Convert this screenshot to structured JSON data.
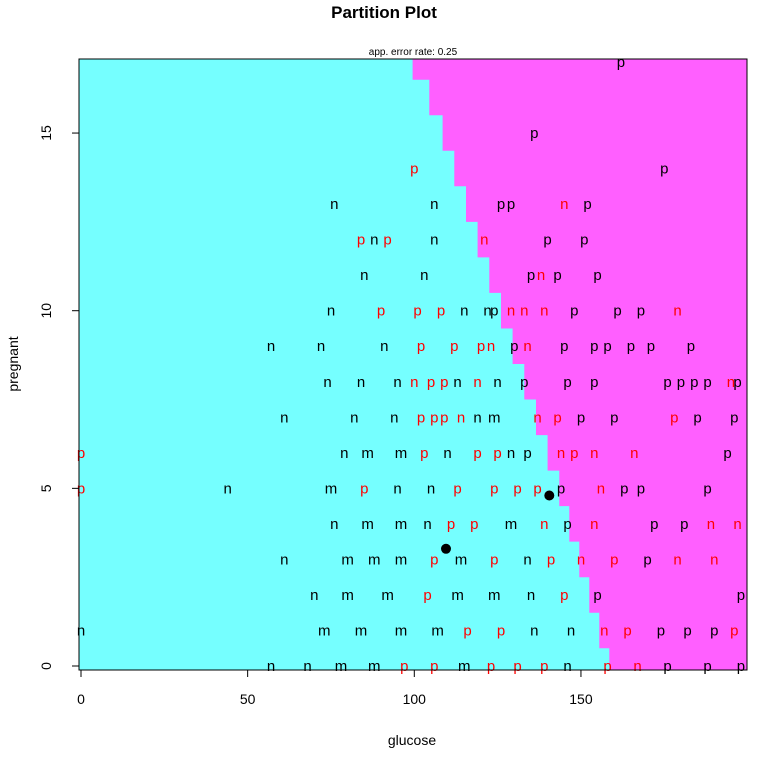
{
  "chart_data": {
    "type": "scatter",
    "title": "Partition Plot",
    "subtitle": "app. error rate: 0.25",
    "xlabel": "glucose",
    "ylabel": "pregnant",
    "xlim": [
      0,
      199
    ],
    "ylim": [
      0,
      17
    ],
    "xticks": [
      0,
      50,
      100,
      150
    ],
    "yticks": [
      0,
      5,
      10,
      15
    ],
    "regions": [
      {
        "label": "n",
        "color": "#75ffff",
        "side": "left"
      },
      {
        "label": "p",
        "color": "#ff5fff",
        "side": "right"
      }
    ],
    "boundary": [
      [
        158.5,
        0
      ],
      [
        155.5,
        1
      ],
      [
        152.5,
        2
      ],
      [
        149.5,
        3
      ],
      [
        146.5,
        4
      ],
      [
        143.5,
        5
      ],
      [
        140,
        6
      ],
      [
        136.5,
        7
      ],
      [
        133,
        8
      ],
      [
        129.5,
        9
      ],
      [
        126,
        10
      ],
      [
        122.5,
        11
      ],
      [
        119,
        12
      ],
      [
        115.5,
        13
      ],
      [
        112,
        14
      ],
      [
        108.5,
        15
      ],
      [
        104.5,
        16
      ],
      [
        99.5,
        17
      ]
    ],
    "centers": [
      {
        "x": 109.5,
        "y": 3.3
      },
      {
        "x": 140.5,
        "y": 4.8
      }
    ],
    "point_colors": {
      "correct": "#000000",
      "misclassified": "#ff0000"
    },
    "points": [
      {
        "x": 162,
        "y": 17,
        "c": "p",
        "e": false
      },
      {
        "x": 136,
        "y": 15,
        "c": "p",
        "e": false
      },
      {
        "x": 100,
        "y": 14,
        "c": "p",
        "e": true
      },
      {
        "x": 175,
        "y": 14,
        "c": "p",
        "e": false
      },
      {
        "x": 76,
        "y": 13,
        "c": "n",
        "e": false
      },
      {
        "x": 106,
        "y": 13,
        "c": "n",
        "e": false
      },
      {
        "x": 126,
        "y": 13,
        "c": "p",
        "e": false
      },
      {
        "x": 129,
        "y": 13,
        "c": "p",
        "e": false
      },
      {
        "x": 145,
        "y": 13,
        "c": "n",
        "e": true
      },
      {
        "x": 152,
        "y": 13,
        "c": "p",
        "e": false
      },
      {
        "x": 84,
        "y": 12,
        "c": "p",
        "e": true
      },
      {
        "x": 88,
        "y": 12,
        "c": "n",
        "e": false
      },
      {
        "x": 92,
        "y": 12,
        "c": "p",
        "e": true
      },
      {
        "x": 106,
        "y": 12,
        "c": "n",
        "e": false
      },
      {
        "x": 121,
        "y": 12,
        "c": "n",
        "e": true
      },
      {
        "x": 140,
        "y": 12,
        "c": "p",
        "e": false
      },
      {
        "x": 151,
        "y": 12,
        "c": "p",
        "e": false
      },
      {
        "x": 85,
        "y": 11,
        "c": "n",
        "e": false
      },
      {
        "x": 103,
        "y": 11,
        "c": "n",
        "e": false
      },
      {
        "x": 135,
        "y": 11,
        "c": "p",
        "e": false
      },
      {
        "x": 138,
        "y": 11,
        "c": "n",
        "e": true
      },
      {
        "x": 143,
        "y": 11,
        "c": "p",
        "e": false
      },
      {
        "x": 155,
        "y": 11,
        "c": "p",
        "e": false
      },
      {
        "x": 75,
        "y": 10,
        "c": "n",
        "e": false
      },
      {
        "x": 90,
        "y": 10,
        "c": "p",
        "e": true
      },
      {
        "x": 101,
        "y": 10,
        "c": "p",
        "e": true
      },
      {
        "x": 108,
        "y": 10,
        "c": "p",
        "e": true
      },
      {
        "x": 115,
        "y": 10,
        "c": "n",
        "e": false
      },
      {
        "x": 122,
        "y": 10,
        "c": "n",
        "e": false
      },
      {
        "x": 124,
        "y": 10,
        "c": "p",
        "e": false
      },
      {
        "x": 129,
        "y": 10,
        "c": "n",
        "e": true
      },
      {
        "x": 133,
        "y": 10,
        "c": "n",
        "e": true
      },
      {
        "x": 139,
        "y": 10,
        "c": "n",
        "e": true
      },
      {
        "x": 148,
        "y": 10,
        "c": "p",
        "e": false
      },
      {
        "x": 161,
        "y": 10,
        "c": "p",
        "e": false
      },
      {
        "x": 168,
        "y": 10,
        "c": "p",
        "e": false
      },
      {
        "x": 179,
        "y": 10,
        "c": "n",
        "e": true
      },
      {
        "x": 57,
        "y": 9,
        "c": "n",
        "e": false
      },
      {
        "x": 72,
        "y": 9,
        "c": "n",
        "e": false
      },
      {
        "x": 91,
        "y": 9,
        "c": "n",
        "e": false
      },
      {
        "x": 102,
        "y": 9,
        "c": "p",
        "e": true
      },
      {
        "x": 112,
        "y": 9,
        "c": "p",
        "e": true
      },
      {
        "x": 120,
        "y": 9,
        "c": "p",
        "e": true
      },
      {
        "x": 123,
        "y": 9,
        "c": "n",
        "e": true
      },
      {
        "x": 130,
        "y": 9,
        "c": "p",
        "e": false
      },
      {
        "x": 134,
        "y": 9,
        "c": "n",
        "e": true
      },
      {
        "x": 145,
        "y": 9,
        "c": "p",
        "e": false
      },
      {
        "x": 154,
        "y": 9,
        "c": "p",
        "e": false
      },
      {
        "x": 158,
        "y": 9,
        "c": "p",
        "e": false
      },
      {
        "x": 165,
        "y": 9,
        "c": "p",
        "e": false
      },
      {
        "x": 171,
        "y": 9,
        "c": "p",
        "e": false
      },
      {
        "x": 183,
        "y": 9,
        "c": "p",
        "e": false
      },
      {
        "x": 74,
        "y": 8,
        "c": "n",
        "e": false
      },
      {
        "x": 84,
        "y": 8,
        "c": "n",
        "e": false
      },
      {
        "x": 95,
        "y": 8,
        "c": "n",
        "e": false
      },
      {
        "x": 100,
        "y": 8,
        "c": "n",
        "e": true
      },
      {
        "x": 105,
        "y": 8,
        "c": "p",
        "e": true
      },
      {
        "x": 109,
        "y": 8,
        "c": "p",
        "e": true
      },
      {
        "x": 113,
        "y": 8,
        "c": "n",
        "e": false
      },
      {
        "x": 119,
        "y": 8,
        "c": "n",
        "e": true
      },
      {
        "x": 125,
        "y": 8,
        "c": "n",
        "e": false
      },
      {
        "x": 133,
        "y": 8,
        "c": "p",
        "e": false
      },
      {
        "x": 146,
        "y": 8,
        "c": "p",
        "e": false
      },
      {
        "x": 154,
        "y": 8,
        "c": "p",
        "e": false
      },
      {
        "x": 176,
        "y": 8,
        "c": "p",
        "e": false
      },
      {
        "x": 180,
        "y": 8,
        "c": "p",
        "e": false
      },
      {
        "x": 184,
        "y": 8,
        "c": "p",
        "e": false
      },
      {
        "x": 188,
        "y": 8,
        "c": "p",
        "e": false
      },
      {
        "x": 195,
        "y": 8,
        "c": "n",
        "e": true
      },
      {
        "x": 197,
        "y": 8,
        "c": "p",
        "e": false
      },
      {
        "x": 61,
        "y": 7,
        "c": "n",
        "e": false
      },
      {
        "x": 82,
        "y": 7,
        "c": "n",
        "e": false
      },
      {
        "x": 94,
        "y": 7,
        "c": "n",
        "e": false
      },
      {
        "x": 102,
        "y": 7,
        "c": "p",
        "e": true
      },
      {
        "x": 106,
        "y": 7,
        "c": "p",
        "e": true
      },
      {
        "x": 109,
        "y": 7,
        "c": "p",
        "e": true
      },
      {
        "x": 114,
        "y": 7,
        "c": "n",
        "e": true
      },
      {
        "x": 119,
        "y": 7,
        "c": "n",
        "e": false
      },
      {
        "x": 124,
        "y": 7,
        "c": "m",
        "e": false
      },
      {
        "x": 137,
        "y": 7,
        "c": "n",
        "e": true
      },
      {
        "x": 143,
        "y": 7,
        "c": "p",
        "e": true
      },
      {
        "x": 150,
        "y": 7,
        "c": "p",
        "e": false
      },
      {
        "x": 160,
        "y": 7,
        "c": "p",
        "e": false
      },
      {
        "x": 178,
        "y": 7,
        "c": "p",
        "e": true
      },
      {
        "x": 185,
        "y": 7,
        "c": "p",
        "e": false
      },
      {
        "x": 196,
        "y": 7,
        "c": "p",
        "e": false
      },
      {
        "x": 0,
        "y": 6,
        "c": "p",
        "e": true
      },
      {
        "x": 79,
        "y": 6,
        "c": "n",
        "e": false
      },
      {
        "x": 86,
        "y": 6,
        "c": "m",
        "e": false
      },
      {
        "x": 96,
        "y": 6,
        "c": "m",
        "e": false
      },
      {
        "x": 103,
        "y": 6,
        "c": "p",
        "e": true
      },
      {
        "x": 110,
        "y": 6,
        "c": "n",
        "e": false
      },
      {
        "x": 119,
        "y": 6,
        "c": "p",
        "e": true
      },
      {
        "x": 125,
        "y": 6,
        "c": "p",
        "e": true
      },
      {
        "x": 129,
        "y": 6,
        "c": "n",
        "e": false
      },
      {
        "x": 134,
        "y": 6,
        "c": "p",
        "e": false
      },
      {
        "x": 144,
        "y": 6,
        "c": "n",
        "e": true
      },
      {
        "x": 148,
        "y": 6,
        "c": "p",
        "e": true
      },
      {
        "x": 154,
        "y": 6,
        "c": "n",
        "e": true
      },
      {
        "x": 166,
        "y": 6,
        "c": "n",
        "e": true
      },
      {
        "x": 194,
        "y": 6,
        "c": "p",
        "e": false
      },
      {
        "x": 0,
        "y": 5,
        "c": "p",
        "e": true
      },
      {
        "x": 44,
        "y": 5,
        "c": "n",
        "e": false
      },
      {
        "x": 75,
        "y": 5,
        "c": "m",
        "e": false
      },
      {
        "x": 85,
        "y": 5,
        "c": "p",
        "e": true
      },
      {
        "x": 95,
        "y": 5,
        "c": "n",
        "e": false
      },
      {
        "x": 105,
        "y": 5,
        "c": "n",
        "e": false
      },
      {
        "x": 113,
        "y": 5,
        "c": "p",
        "e": true
      },
      {
        "x": 124,
        "y": 5,
        "c": "p",
        "e": true
      },
      {
        "x": 131,
        "y": 5,
        "c": "p",
        "e": true
      },
      {
        "x": 137,
        "y": 5,
        "c": "p",
        "e": true
      },
      {
        "x": 144,
        "y": 5,
        "c": "p",
        "e": false
      },
      {
        "x": 156,
        "y": 5,
        "c": "n",
        "e": true
      },
      {
        "x": 163,
        "y": 5,
        "c": "p",
        "e": false
      },
      {
        "x": 168,
        "y": 5,
        "c": "p",
        "e": false
      },
      {
        "x": 188,
        "y": 5,
        "c": "p",
        "e": false
      },
      {
        "x": 76,
        "y": 4,
        "c": "n",
        "e": false
      },
      {
        "x": 86,
        "y": 4,
        "c": "m",
        "e": false
      },
      {
        "x": 96,
        "y": 4,
        "c": "m",
        "e": false
      },
      {
        "x": 104,
        "y": 4,
        "c": "n",
        "e": false
      },
      {
        "x": 111,
        "y": 4,
        "c": "p",
        "e": true
      },
      {
        "x": 118,
        "y": 4,
        "c": "p",
        "e": true
      },
      {
        "x": 129,
        "y": 4,
        "c": "m",
        "e": false
      },
      {
        "x": 139,
        "y": 4,
        "c": "n",
        "e": true
      },
      {
        "x": 146,
        "y": 4,
        "c": "p",
        "e": false
      },
      {
        "x": 154,
        "y": 4,
        "c": "n",
        "e": true
      },
      {
        "x": 172,
        "y": 4,
        "c": "p",
        "e": false
      },
      {
        "x": 181,
        "y": 4,
        "c": "p",
        "e": false
      },
      {
        "x": 189,
        "y": 4,
        "c": "n",
        "e": true
      },
      {
        "x": 197,
        "y": 4,
        "c": "n",
        "e": true
      },
      {
        "x": 61,
        "y": 3,
        "c": "n",
        "e": false
      },
      {
        "x": 80,
        "y": 3,
        "c": "m",
        "e": false
      },
      {
        "x": 88,
        "y": 3,
        "c": "m",
        "e": false
      },
      {
        "x": 96,
        "y": 3,
        "c": "m",
        "e": false
      },
      {
        "x": 106,
        "y": 3,
        "c": "p",
        "e": true
      },
      {
        "x": 114,
        "y": 3,
        "c": "m",
        "e": false
      },
      {
        "x": 124,
        "y": 3,
        "c": "p",
        "e": true
      },
      {
        "x": 134,
        "y": 3,
        "c": "n",
        "e": false
      },
      {
        "x": 141,
        "y": 3,
        "c": "p",
        "e": true
      },
      {
        "x": 150,
        "y": 3,
        "c": "n",
        "e": true
      },
      {
        "x": 160,
        "y": 3,
        "c": "p",
        "e": true
      },
      {
        "x": 170,
        "y": 3,
        "c": "p",
        "e": false
      },
      {
        "x": 179,
        "y": 3,
        "c": "n",
        "e": true
      },
      {
        "x": 190,
        "y": 3,
        "c": "n",
        "e": true
      },
      {
        "x": 70,
        "y": 2,
        "c": "n",
        "e": false
      },
      {
        "x": 80,
        "y": 2,
        "c": "m",
        "e": false
      },
      {
        "x": 92,
        "y": 2,
        "c": "m",
        "e": false
      },
      {
        "x": 104,
        "y": 2,
        "c": "p",
        "e": true
      },
      {
        "x": 113,
        "y": 2,
        "c": "m",
        "e": false
      },
      {
        "x": 124,
        "y": 2,
        "c": "m",
        "e": false
      },
      {
        "x": 135,
        "y": 2,
        "c": "n",
        "e": false
      },
      {
        "x": 145,
        "y": 2,
        "c": "p",
        "e": true
      },
      {
        "x": 155,
        "y": 2,
        "c": "p",
        "e": false
      },
      {
        "x": 198,
        "y": 2,
        "c": "p",
        "e": false
      },
      {
        "x": 0,
        "y": 1,
        "c": "n",
        "e": false
      },
      {
        "x": 73,
        "y": 1,
        "c": "m",
        "e": false
      },
      {
        "x": 84,
        "y": 1,
        "c": "m",
        "e": false
      },
      {
        "x": 96,
        "y": 1,
        "c": "m",
        "e": false
      },
      {
        "x": 107,
        "y": 1,
        "c": "m",
        "e": false
      },
      {
        "x": 116,
        "y": 1,
        "c": "p",
        "e": true
      },
      {
        "x": 126,
        "y": 1,
        "c": "p",
        "e": true
      },
      {
        "x": 136,
        "y": 1,
        "c": "n",
        "e": false
      },
      {
        "x": 147,
        "y": 1,
        "c": "n",
        "e": false
      },
      {
        "x": 157,
        "y": 1,
        "c": "n",
        "e": true
      },
      {
        "x": 164,
        "y": 1,
        "c": "p",
        "e": true
      },
      {
        "x": 174,
        "y": 1,
        "c": "p",
        "e": false
      },
      {
        "x": 182,
        "y": 1,
        "c": "p",
        "e": false
      },
      {
        "x": 190,
        "y": 1,
        "c": "p",
        "e": false
      },
      {
        "x": 196,
        "y": 1,
        "c": "p",
        "e": true
      },
      {
        "x": 57,
        "y": 0,
        "c": "n",
        "e": false
      },
      {
        "x": 68,
        "y": 0,
        "c": "n",
        "e": false
      },
      {
        "x": 78,
        "y": 0,
        "c": "m",
        "e": false
      },
      {
        "x": 88,
        "y": 0,
        "c": "m",
        "e": false
      },
      {
        "x": 97,
        "y": 0,
        "c": "p",
        "e": true
      },
      {
        "x": 106,
        "y": 0,
        "c": "p",
        "e": true
      },
      {
        "x": 115,
        "y": 0,
        "c": "m",
        "e": false
      },
      {
        "x": 123,
        "y": 0,
        "c": "p",
        "e": true
      },
      {
        "x": 131,
        "y": 0,
        "c": "p",
        "e": true
      },
      {
        "x": 139,
        "y": 0,
        "c": "p",
        "e": true
      },
      {
        "x": 146,
        "y": 0,
        "c": "n",
        "e": false
      },
      {
        "x": 158,
        "y": 0,
        "c": "p",
        "e": true
      },
      {
        "x": 167,
        "y": 0,
        "c": "n",
        "e": true
      },
      {
        "x": 176,
        "y": 0,
        "c": "p",
        "e": false
      },
      {
        "x": 188,
        "y": 0,
        "c": "p",
        "e": false
      },
      {
        "x": 198,
        "y": 0,
        "c": "p",
        "e": false
      }
    ]
  }
}
